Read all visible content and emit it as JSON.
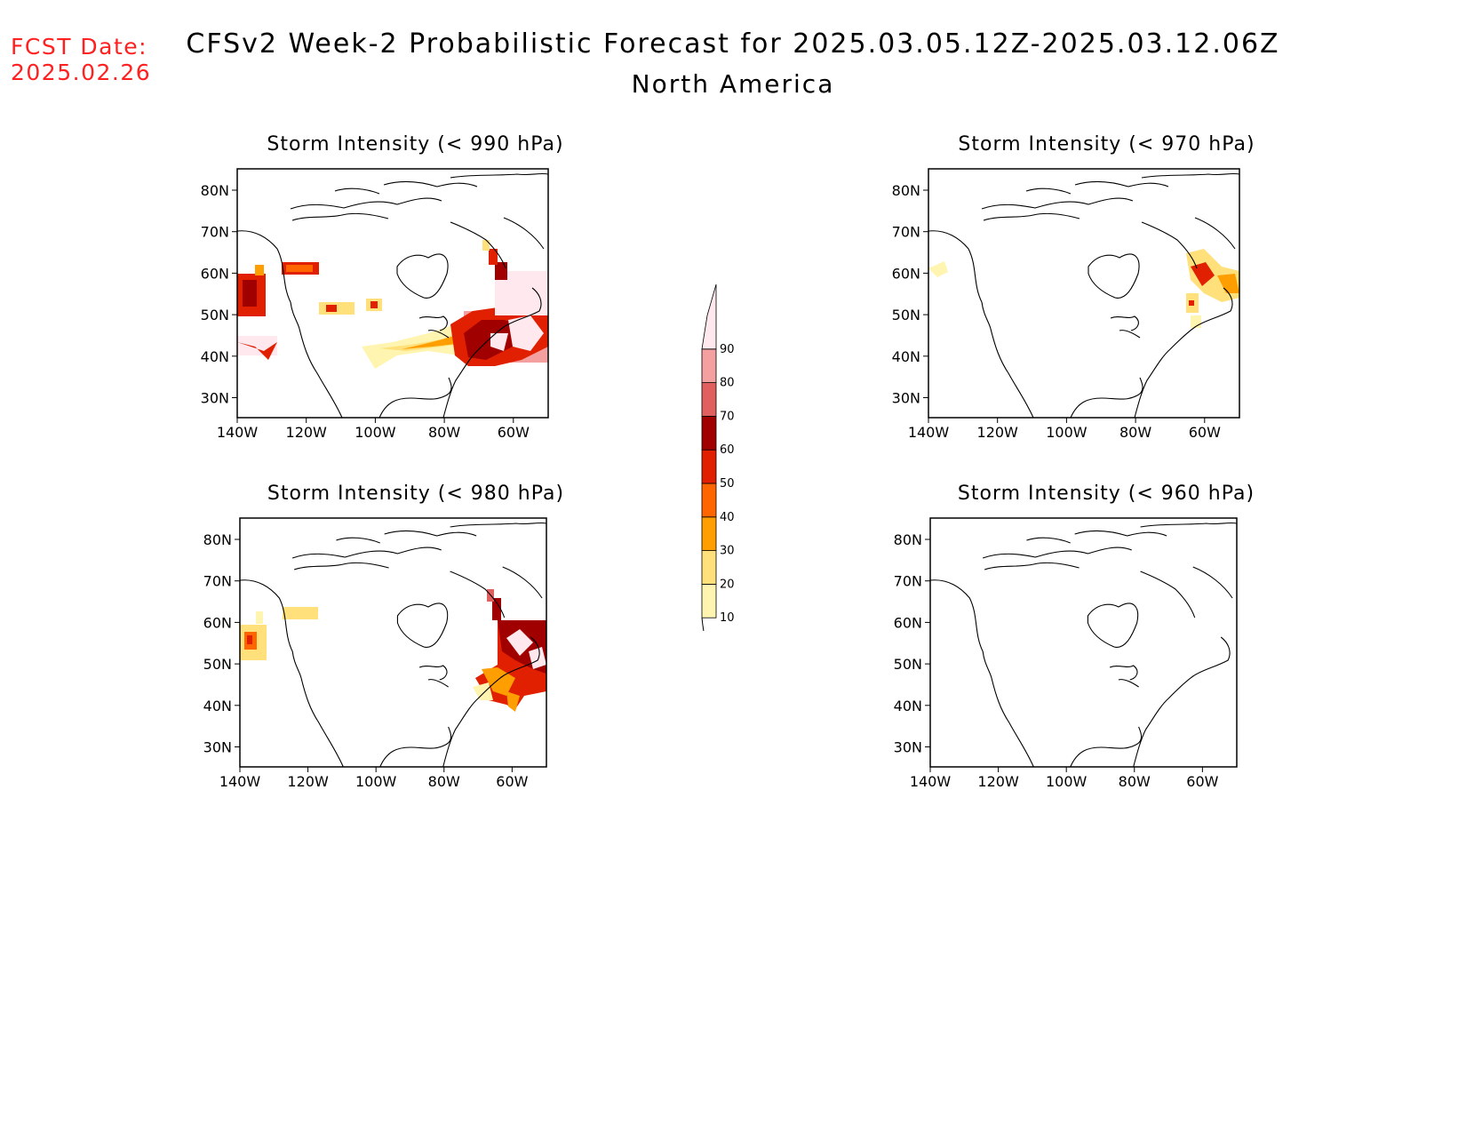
{
  "header": {
    "fcst_label": "FCST Date:",
    "fcst_date": "2025.02.26",
    "title": "CFSv2 Week-2 Probabilistic Forecast for 2025.03.05.12Z-2025.03.12.06Z",
    "subtitle": "North America"
  },
  "axes": {
    "lat_ticks": [
      "80N",
      "70N",
      "60N",
      "50N",
      "40N",
      "30N"
    ],
    "lon_ticks": [
      "140W",
      "120W",
      "100W",
      "80W",
      "60W"
    ]
  },
  "panels": [
    {
      "id": "p990",
      "title": "Storm Intensity (< 990 hPa)"
    },
    {
      "id": "p970",
      "title": "Storm Intensity (< 970 hPa)"
    },
    {
      "id": "p980",
      "title": "Storm Intensity (< 980 hPa)"
    },
    {
      "id": "p960",
      "title": "Storm Intensity (< 960 hPa)"
    }
  ],
  "colorbar": {
    "labels": [
      "10",
      "20",
      "30",
      "40",
      "50",
      "60",
      "70",
      "80",
      "90"
    ],
    "colors": [
      "#fff5b0",
      "#ffe07a",
      "#ff9e00",
      "#ff6600",
      "#e02000",
      "#a00000",
      "#e06060",
      "#f4a0a0",
      "#ffe8ee"
    ]
  }
}
